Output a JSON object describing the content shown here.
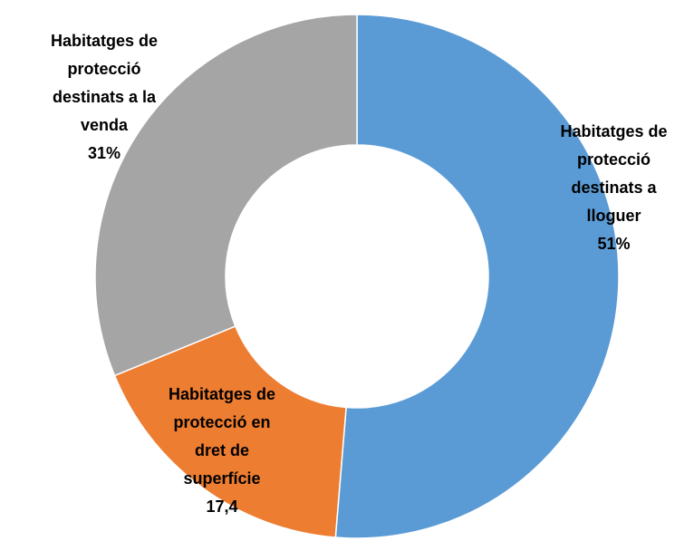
{
  "chart_data": {
    "type": "donut",
    "categories": [
      "Habitatges de protecció destinats a lloguer",
      "Habitatges de protecció en dret de superfície",
      "Habitatges de protecció destinats a la venda"
    ],
    "values": [
      51,
      17.4,
      31
    ],
    "value_labels": [
      "51%",
      "17,4",
      "31%"
    ],
    "colors": [
      "#5b9bd5",
      "#ed7d31",
      "#a5a5a5"
    ]
  }
}
